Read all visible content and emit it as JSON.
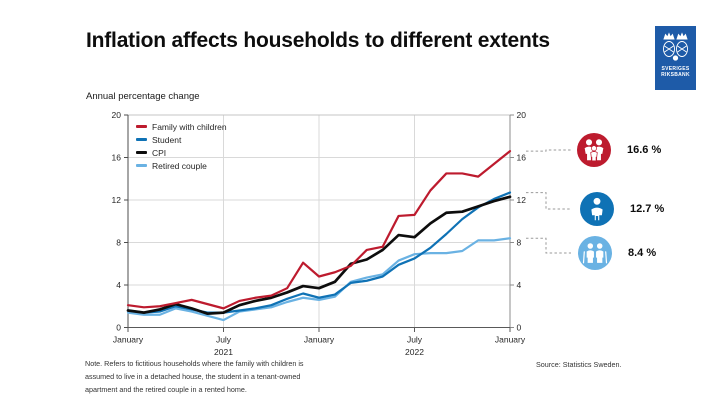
{
  "slide": {
    "title": "Inflation affects households to different extents",
    "subtitle": "Annual percentage change",
    "note_lines": [
      "Note. Refers to fictitious households where the family with children is",
      "assumed to live in a detached house, the student in a tenant-owned",
      "apartment and the retired couple in a rented home."
    ],
    "source": "Source: Statistics Sweden.",
    "logo": {
      "org_line1": "SVERIGES",
      "org_line2": "RIKSBANK",
      "background": "#1e5ba8"
    }
  },
  "chart_data": {
    "type": "line",
    "title": "Inflation affects households to different extents",
    "units": "Annual percentage change",
    "ylim": [
      0,
      20
    ],
    "y_ticks": [
      0,
      4,
      8,
      12,
      16,
      20
    ],
    "grid": true,
    "legend_position": "top-left-inside",
    "x": [
      "Jan 2021",
      "Feb 2021",
      "Mar 2021",
      "Apr 2021",
      "May 2021",
      "Jun 2021",
      "Jul 2021",
      "Aug 2021",
      "Sep 2021",
      "Oct 2021",
      "Nov 2021",
      "Dec 2021",
      "Jan 2022",
      "Feb 2022",
      "Mar 2022",
      "Apr 2022",
      "May 2022",
      "Jun 2022",
      "Jul 2022",
      "Aug 2022",
      "Sep 2022",
      "Oct 2022",
      "Nov 2022",
      "Dec 2022",
      "Jan 2023"
    ],
    "x_ticks": [
      {
        "label": "January",
        "i": 0
      },
      {
        "label": "July",
        "i": 6,
        "year": "2021"
      },
      {
        "label": "January",
        "i": 12
      },
      {
        "label": "July",
        "i": 18,
        "year": "2022"
      },
      {
        "label": "January",
        "i": 24
      }
    ],
    "series": [
      {
        "name": "Family with children",
        "color": "#bd1b2e",
        "values": [
          2.1,
          1.9,
          2.0,
          2.3,
          2.6,
          2.2,
          1.8,
          2.5,
          2.8,
          3.0,
          3.7,
          6.1,
          4.8,
          5.2,
          5.8,
          7.3,
          7.6,
          10.5,
          10.6,
          12.9,
          14.5,
          14.5,
          14.2,
          15.4,
          16.6
        ]
      },
      {
        "name": "Student",
        "color": "#0f72b5",
        "values": [
          1.6,
          1.4,
          1.5,
          2.0,
          1.7,
          1.4,
          1.4,
          1.6,
          1.8,
          2.1,
          2.7,
          3.2,
          2.8,
          3.1,
          4.2,
          4.4,
          4.8,
          5.9,
          6.5,
          7.5,
          8.8,
          10.2,
          11.3,
          12.1,
          12.7
        ]
      },
      {
        "name": "CPI",
        "color": "#0d0d0d",
        "values": [
          1.6,
          1.4,
          1.7,
          2.2,
          1.8,
          1.3,
          1.4,
          2.1,
          2.5,
          2.8,
          3.3,
          3.9,
          3.7,
          4.3,
          6.0,
          6.4,
          7.3,
          8.7,
          8.5,
          9.8,
          10.8,
          10.9,
          11.4,
          11.9,
          12.3
        ]
      },
      {
        "name": "Retired couple",
        "color": "#6ab2e3",
        "values": [
          1.4,
          1.2,
          1.2,
          1.8,
          1.5,
          1.1,
          0.7,
          1.5,
          1.7,
          1.9,
          2.4,
          2.8,
          2.6,
          2.9,
          4.3,
          4.7,
          5.0,
          6.3,
          6.9,
          7.0,
          7.0,
          7.2,
          8.2,
          8.2,
          8.4
        ]
      }
    ]
  },
  "callouts": [
    {
      "icon": "family-icon",
      "label": "16.6 %",
      "value": 16.6,
      "color": "#bd1b2e"
    },
    {
      "icon": "student-icon",
      "label": "12.7 %",
      "value": 12.7,
      "color": "#0f72b5"
    },
    {
      "icon": "retired-couple-icon",
      "label": "8.4 %",
      "value": 8.4,
      "color": "#6ab2e3"
    }
  ]
}
